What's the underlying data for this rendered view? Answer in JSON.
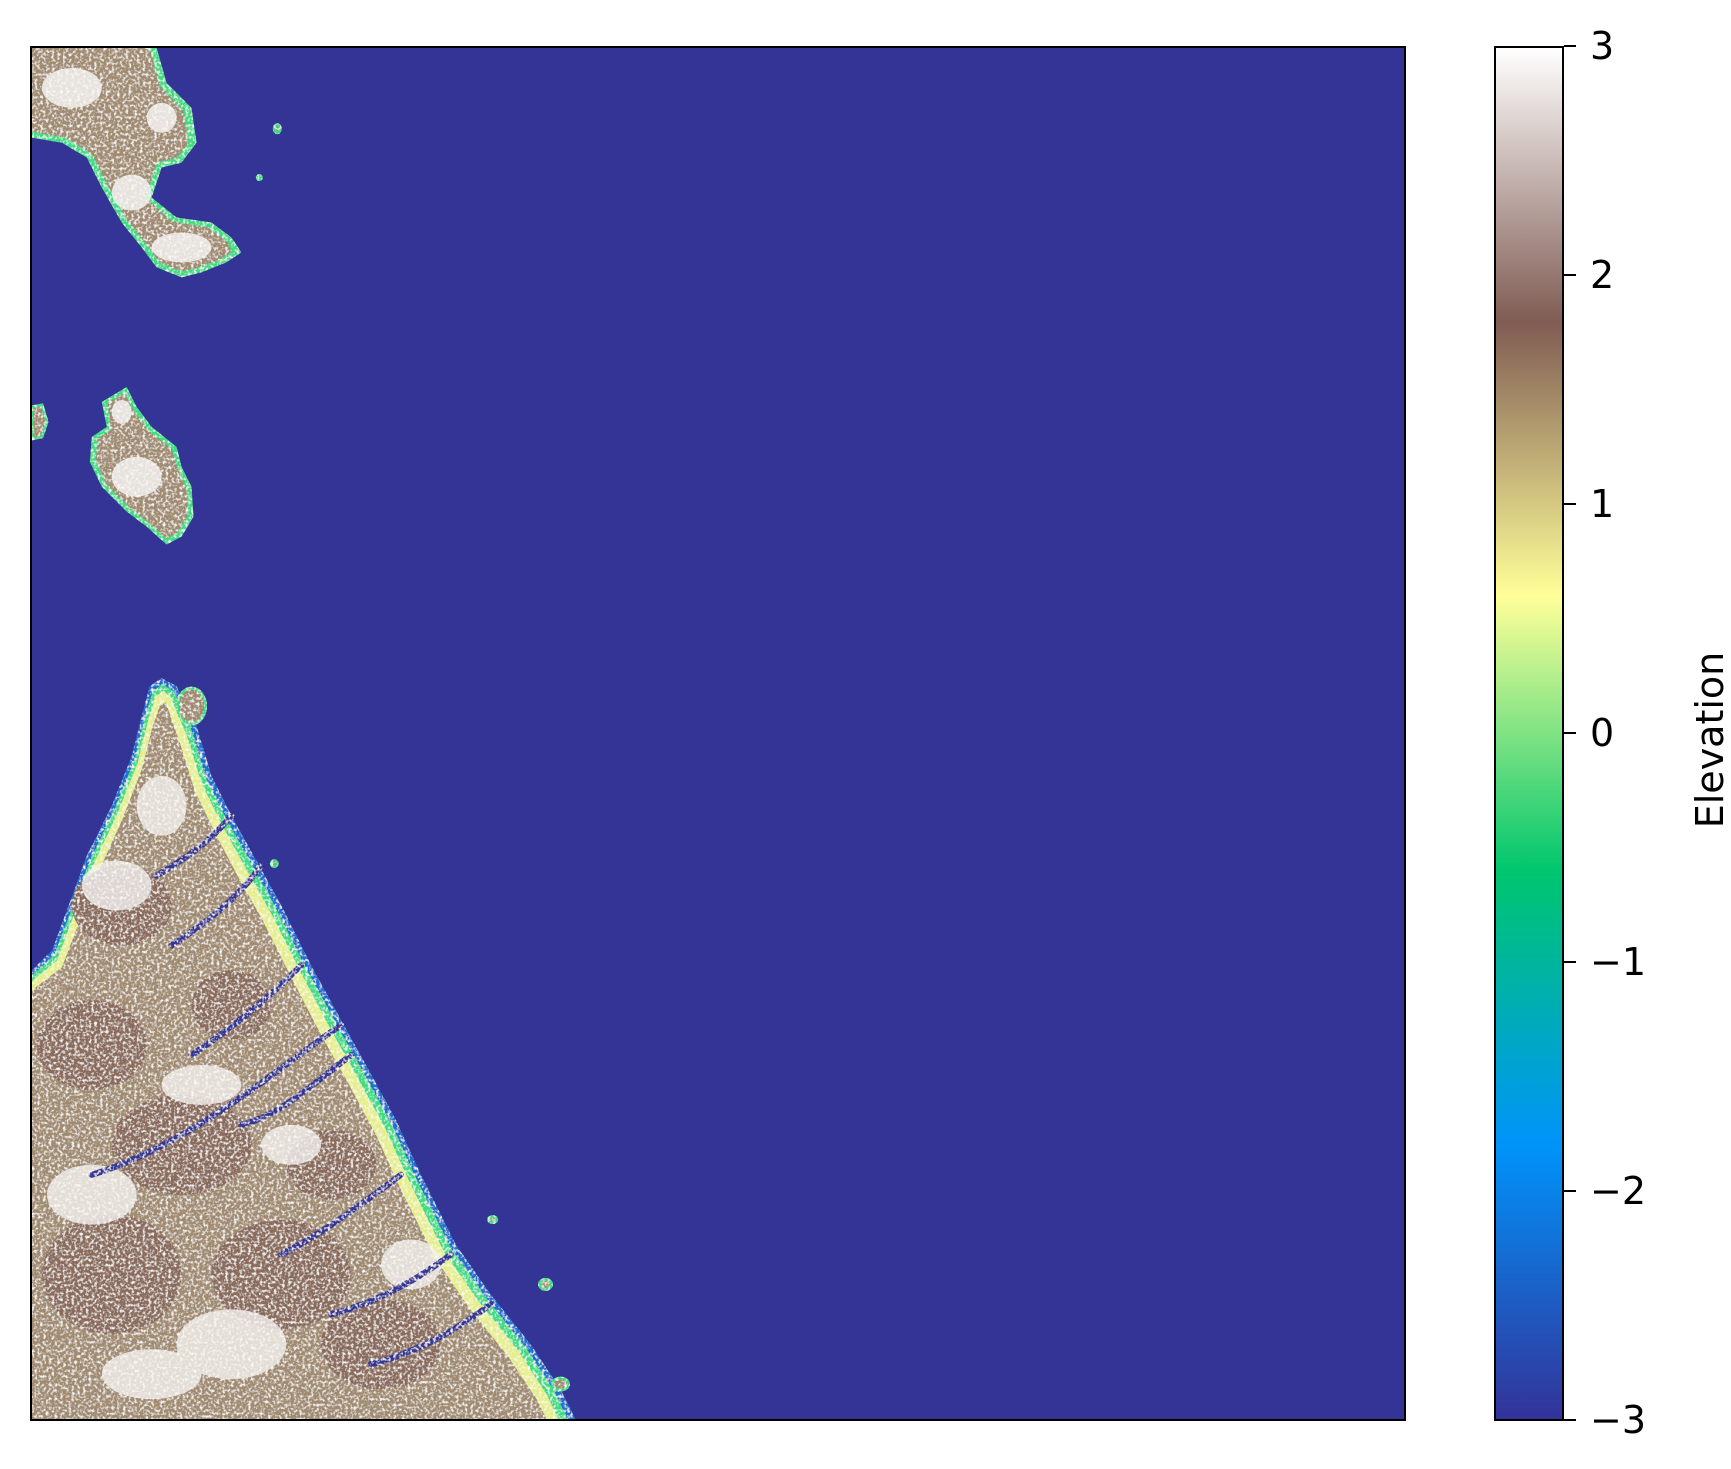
{
  "map": {
    "water_color": "#343496",
    "land_colors": {
      "shore_deep": "#1a6fd0",
      "shore_mid": "#3ddc84",
      "shore_light": "#e6ee8c",
      "lowland": "#a08a70",
      "upland": "#8a6a5a",
      "peak": "#f4f2f0"
    }
  },
  "colorbar": {
    "label": "Elevation",
    "ticks": [
      "3",
      "2",
      "1",
      "0",
      "−1",
      "−2",
      "−3"
    ],
    "range": [
      -3,
      3
    ],
    "colormap": "terrain",
    "stops": [
      "#333399",
      "#0094fa",
      "#00c66e",
      "#ffff99",
      "#805c54",
      "#ffffff"
    ]
  },
  "chart_data": {
    "type": "heatmap",
    "title": "",
    "xlabel": "",
    "ylabel": "",
    "colorbar_label": "Elevation",
    "colorbar_ticks": [
      3,
      2,
      1,
      0,
      -1,
      -2,
      -3
    ],
    "vmin": -3,
    "vmax": 3,
    "axes_ticks": "none",
    "content": "coastal elevation raster: land mass in lower-left and islands upper-left, water elsewhere at -3"
  }
}
